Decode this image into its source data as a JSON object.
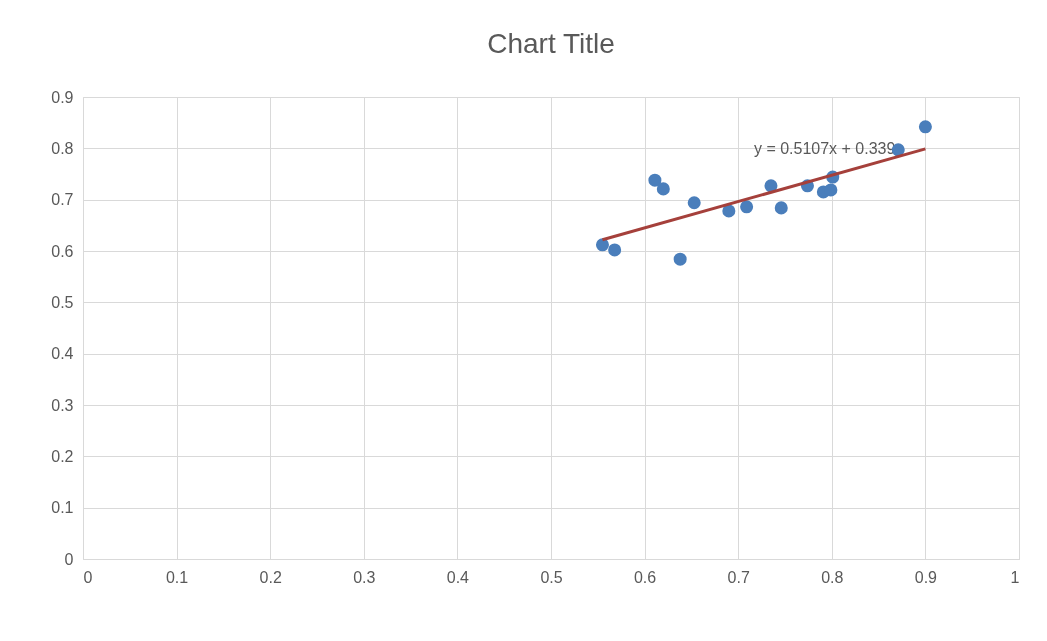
{
  "chart_data": {
    "type": "scatter",
    "title": "Chart Title",
    "series": [
      {
        "marker": "circle",
        "color": "#4a7ebb",
        "x": [
          0.555,
          0.568,
          0.611,
          0.62,
          0.638,
          0.653,
          0.69,
          0.709,
          0.735,
          0.746,
          0.774,
          0.791,
          0.799,
          0.801,
          0.871,
          0.9
        ],
        "values": [
          0.612,
          0.602,
          0.738,
          0.721,
          0.584,
          0.694,
          0.678,
          0.686,
          0.727,
          0.684,
          0.727,
          0.715,
          0.719,
          0.744,
          0.797,
          0.842
        ]
      },
      {
        "type": "line",
        "color": "#a5403b",
        "x": [
          0.555,
          0.9
        ],
        "values": [
          0.622,
          0.799
        ]
      }
    ],
    "annotations": [
      "y = 0.5107x + 0.339"
    ],
    "xlim": [
      0,
      1
    ],
    "xticks": [
      0,
      0.1,
      0.2,
      0.3,
      0.4,
      0.5,
      0.6,
      0.7,
      0.8,
      0.9,
      1
    ],
    "ylim": [
      0,
      0.9
    ],
    "yticks": [
      0,
      0.1,
      0.2,
      0.3,
      0.4,
      0.5,
      0.6,
      0.7,
      0.8,
      0.9
    ],
    "grid": true
  }
}
